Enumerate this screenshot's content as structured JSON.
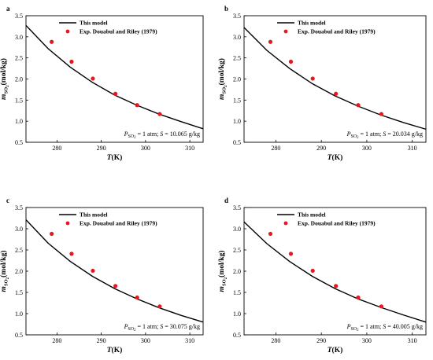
{
  "legend": {
    "model_label": "This model",
    "exp_label": "Exp. Douabul and Riley (1979)"
  },
  "colors": {
    "model_line": "#000000",
    "exp_points": "#e8171f"
  },
  "axes": {
    "xlabel_var": "T",
    "xlabel_unit": "(K)",
    "ylabel_var": "m",
    "ylabel_sub": "SO",
    "ylabel_sub2": "2",
    "ylabel_unit": "(mol/kg)",
    "xlim": [
      273,
      313
    ],
    "ylim": [
      0.5,
      3.5
    ],
    "xticks": [
      "280",
      "290",
      "300",
      "310"
    ],
    "yticks": [
      "0.5",
      "1.0",
      "1.5",
      "2.0",
      "2.5",
      "3.0",
      "3.5"
    ]
  },
  "chart_data": [
    {
      "type": "scatter",
      "panel": "a",
      "annotation": {
        "p_var": "P",
        "p_sub": "SO",
        "p_sub2": "2",
        "p_rest": " = 1 atm; ",
        "s_var": "S",
        "s_rest": " = 10.065 g/kg"
      },
      "series": [
        {
          "name": "This model",
          "kind": "line",
          "x": [
            273,
            278,
            283,
            288,
            293,
            298,
            303,
            308,
            313
          ],
          "y": [
            3.27,
            2.72,
            2.28,
            1.92,
            1.62,
            1.38,
            1.17,
            0.99,
            0.82
          ]
        },
        {
          "name": "Exp. Douabul and Riley (1979)",
          "kind": "points",
          "x": [
            278.8,
            283.3,
            288.1,
            293.2,
            298.1,
            303.2
          ],
          "y": [
            2.88,
            2.41,
            2.01,
            1.65,
            1.38,
            1.17
          ]
        }
      ]
    },
    {
      "type": "scatter",
      "panel": "b",
      "annotation": {
        "p_var": "P",
        "p_sub": "SO",
        "p_sub2": "2",
        "p_rest": " = 1 atm; ",
        "s_var": "S",
        "s_rest": " = 20.034 g/kg"
      },
      "series": [
        {
          "name": "This model",
          "kind": "line",
          "x": [
            273,
            278,
            283,
            288,
            293,
            298,
            303,
            308,
            313
          ],
          "y": [
            3.22,
            2.68,
            2.25,
            1.89,
            1.6,
            1.36,
            1.15,
            0.97,
            0.81
          ]
        },
        {
          "name": "Exp. Douabul and Riley (1979)",
          "kind": "points",
          "x": [
            278.8,
            283.3,
            288.1,
            293.2,
            298.1,
            303.2
          ],
          "y": [
            2.88,
            2.41,
            2.01,
            1.65,
            1.38,
            1.17
          ]
        }
      ]
    },
    {
      "type": "scatter",
      "panel": "c",
      "annotation": {
        "p_var": "P",
        "p_sub": "SO",
        "p_sub2": "2",
        "p_rest": " = 1 atm; ",
        "s_var": "S",
        "s_rest": " = 30.075 g/kg"
      },
      "series": [
        {
          "name": "This model",
          "kind": "line",
          "x": [
            273,
            278,
            283,
            288,
            293,
            298,
            303,
            308,
            313
          ],
          "y": [
            3.21,
            2.66,
            2.23,
            1.88,
            1.59,
            1.35,
            1.14,
            0.96,
            0.8
          ]
        },
        {
          "name": "Exp. Douabul and Riley (1979)",
          "kind": "points",
          "x": [
            278.8,
            283.3,
            288.1,
            293.2,
            298.1,
            303.2
          ],
          "y": [
            2.88,
            2.41,
            2.01,
            1.65,
            1.38,
            1.17
          ]
        }
      ]
    },
    {
      "type": "scatter",
      "panel": "d",
      "annotation": {
        "p_var": "P",
        "p_sub": "SO",
        "p_sub2": "2",
        "p_rest": " = 1 atm; ",
        "s_var": "S",
        "s_rest": " = 40.005 g/kg"
      },
      "series": [
        {
          "name": "This model",
          "kind": "line",
          "x": [
            273,
            278,
            283,
            288,
            293,
            298,
            303,
            308,
            313
          ],
          "y": [
            3.16,
            2.65,
            2.23,
            1.88,
            1.59,
            1.35,
            1.15,
            0.97,
            0.8
          ]
        },
        {
          "name": "Exp. Douabul and Riley (1979)",
          "kind": "points",
          "x": [
            278.8,
            283.3,
            288.1,
            293.2,
            298.1,
            303.2
          ],
          "y": [
            2.88,
            2.41,
            2.01,
            1.65,
            1.38,
            1.17
          ]
        }
      ]
    }
  ]
}
